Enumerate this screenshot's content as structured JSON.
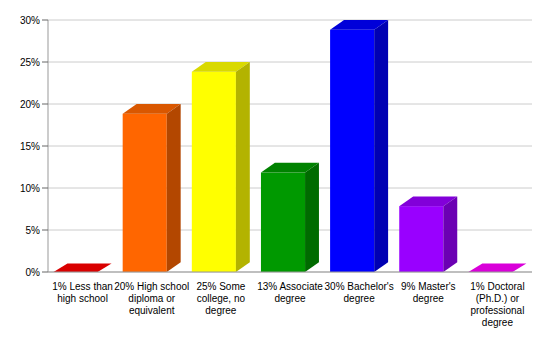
{
  "chart_data": {
    "type": "bar",
    "categories": [
      "1% Less than high school",
      "20% High school diploma or equivalent",
      "25% Some college, no degree",
      "13% Associate degree",
      "30% Bachelor's degree",
      "9% Master's degree",
      "1% Doctoral (Ph.D.) or professional degree"
    ],
    "values": [
      1,
      20,
      25,
      13,
      30,
      9,
      1
    ],
    "colors": [
      "#ff0000",
      "#ff6600",
      "#ffff00",
      "#009900",
      "#0000ff",
      "#9900ff",
      "#ff00ff"
    ],
    "ylim": [
      0,
      30
    ],
    "yticks": [
      {
        "value": 0,
        "label": "0%"
      },
      {
        "value": 5,
        "label": "5%"
      },
      {
        "value": 10,
        "label": "10%"
      },
      {
        "value": 15,
        "label": "15%"
      },
      {
        "value": 20,
        "label": "20%"
      },
      {
        "value": 25,
        "label": "25%"
      },
      {
        "value": 30,
        "label": "30%"
      }
    ],
    "grid": true
  }
}
